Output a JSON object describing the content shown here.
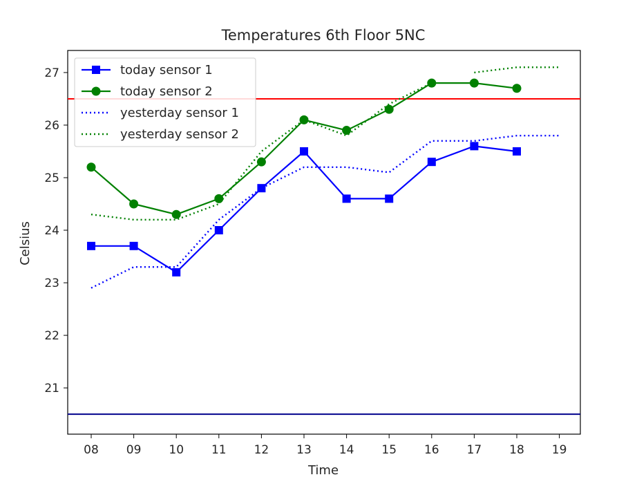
{
  "chart_data": {
    "type": "line",
    "title": "Temperatures 6th Floor 5NC",
    "xlabel": "Time",
    "ylabel": "Celsius",
    "categories": [
      "08",
      "09",
      "10",
      "11",
      "12",
      "13",
      "14",
      "15",
      "16",
      "17",
      "18",
      "19"
    ],
    "ylim": [
      20.12,
      27.42
    ],
    "yticks": [
      21,
      22,
      23,
      24,
      25,
      26,
      27
    ],
    "grid": false,
    "legend_position": "top-left",
    "series": [
      {
        "name": "today sensor 1",
        "color": "#0000ff",
        "style": "solid",
        "marker": "square",
        "values": [
          23.7,
          23.7,
          23.2,
          24.0,
          24.8,
          25.5,
          24.6,
          24.6,
          25.3,
          25.6,
          25.5,
          null
        ]
      },
      {
        "name": "today sensor 2",
        "color": "#008000",
        "style": "solid",
        "marker": "circle",
        "values": [
          25.2,
          24.5,
          24.3,
          24.6,
          25.3,
          26.1,
          25.9,
          26.3,
          26.8,
          26.8,
          26.7,
          null
        ]
      },
      {
        "name": "yesterday sensor 1",
        "color": "#0000ff",
        "style": "dotted",
        "marker": "none",
        "values": [
          22.9,
          23.3,
          23.3,
          24.2,
          24.8,
          25.2,
          25.2,
          25.1,
          25.7,
          25.7,
          25.8,
          25.8
        ]
      },
      {
        "name": "yesterday sensor 2",
        "color": "#008000",
        "style": "dotted",
        "marker": "none",
        "values": [
          24.3,
          24.2,
          24.2,
          24.5,
          25.5,
          26.1,
          25.8,
          26.4,
          26.8,
          null,
          27.1,
          27.1
        ],
        "segments": [
          [
            0,
            8
          ],
          [
            9,
            11
          ]
        ],
        "extra_points": {
          "9": 27.0
        }
      }
    ],
    "reference_lines": [
      {
        "value": 26.5,
        "color": "#ff0000"
      },
      {
        "value": 20.5,
        "color": "#00008b"
      }
    ]
  }
}
